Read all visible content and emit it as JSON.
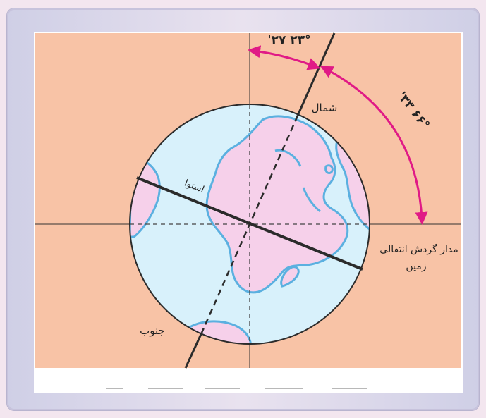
{
  "diagram": {
    "labels": {
      "north": "شمال",
      "south": "جنوب",
      "equator": "استوا",
      "orbit_line_1": "مدار گردش انتقالی",
      "orbit_line_2": "زمین"
    },
    "angles": {
      "tilt": "۲۳° ۲۷'",
      "complement": "۶۶° ۳۳'"
    },
    "colors": {
      "background": "#f8c3a6",
      "ocean": "#d8f1fb",
      "land": "#f6d0ea",
      "coast": "#5bb0e0",
      "arrow": "#e01a86",
      "axis": "#2b2b2b"
    }
  }
}
